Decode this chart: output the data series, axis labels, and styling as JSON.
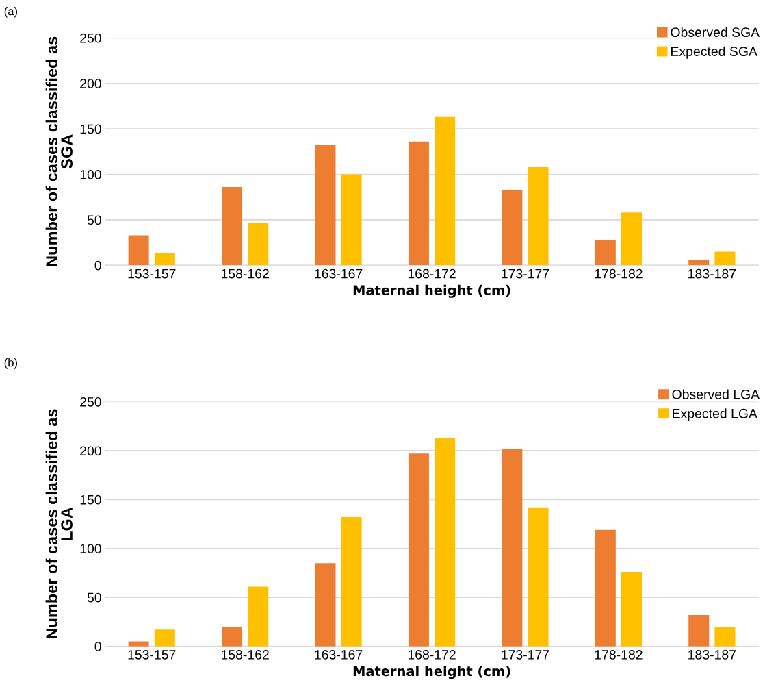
{
  "chart_data": [
    {
      "type": "bar",
      "annotations": [
        "(a)"
      ],
      "xlabel": "Maternal height (cm)",
      "ylabel": "Number of cases classified as\nSGA",
      "categories": [
        "153-157",
        "158-162",
        "163-167",
        "168-172",
        "173-177",
        "178-182",
        "183-187"
      ],
      "series": [
        {
          "name": "Observed SGA",
          "color": "#ed7d31",
          "values": [
            33,
            86,
            132,
            136,
            83,
            28,
            6
          ]
        },
        {
          "name": "Expected SGA",
          "color": "#ffc000",
          "values": [
            13,
            47,
            100,
            163,
            108,
            58,
            15
          ]
        }
      ],
      "ylim": [
        0,
        250
      ],
      "yticks": [
        0,
        50,
        100,
        150,
        200,
        250
      ],
      "grid": "y",
      "legend": "top right"
    },
    {
      "type": "bar",
      "annotations": [
        "(b)"
      ],
      "xlabel": "Maternal height (cm)",
      "ylabel": "Number of cases classified as\nLGA",
      "categories": [
        "153-157",
        "158-162",
        "163-167",
        "168-172",
        "173-177",
        "178-182",
        "183-187"
      ],
      "series": [
        {
          "name": "Observed LGA",
          "color": "#ed7d31",
          "values": [
            5,
            20,
            85,
            197,
            202,
            119,
            32
          ]
        },
        {
          "name": "Expected LGA",
          "color": "#ffc000",
          "values": [
            17,
            61,
            132,
            213,
            142,
            76,
            20
          ]
        }
      ],
      "ylim": [
        0,
        250
      ],
      "yticks": [
        0,
        50,
        100,
        150,
        200,
        250
      ],
      "grid": "y",
      "legend": "top right"
    }
  ]
}
